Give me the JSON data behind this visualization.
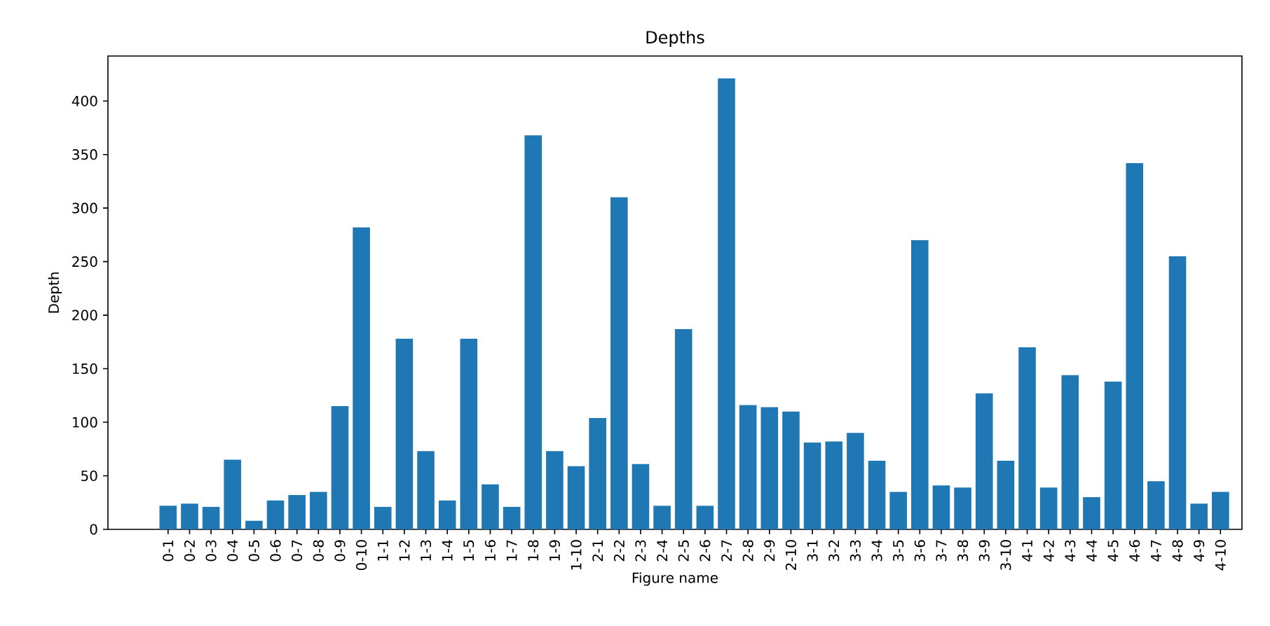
{
  "chart_data": {
    "type": "bar",
    "title": "Depths",
    "xlabel": "Figure name",
    "ylabel": "Depth",
    "categories": [
      "0-1",
      "0-2",
      "0-3",
      "0-4",
      "0-5",
      "0-6",
      "0-7",
      "0-8",
      "0-9",
      "0-10",
      "1-1",
      "1-2",
      "1-3",
      "1-4",
      "1-5",
      "1-6",
      "1-7",
      "1-8",
      "1-9",
      "1-10",
      "2-1",
      "2-2",
      "2-3",
      "2-4",
      "2-5",
      "2-6",
      "2-7",
      "2-8",
      "2-9",
      "2-10",
      "3-1",
      "3-2",
      "3-3",
      "3-4",
      "3-5",
      "3-6",
      "3-7",
      "3-8",
      "3-9",
      "3-10",
      "4-1",
      "4-2",
      "4-3",
      "4-4",
      "4-5",
      "4-6",
      "4-7",
      "4-8",
      "4-9",
      "4-10"
    ],
    "values": [
      22,
      24,
      21,
      65,
      8,
      27,
      32,
      35,
      115,
      282,
      21,
      178,
      73,
      27,
      178,
      42,
      21,
      368,
      73,
      59,
      104,
      310,
      61,
      22,
      187,
      22,
      421,
      116,
      114,
      110,
      81,
      82,
      90,
      64,
      35,
      270,
      41,
      39,
      127,
      64,
      170,
      39,
      144,
      30,
      138,
      342,
      45,
      255,
      24,
      35
    ],
    "color": "#1f77b4",
    "ylim": [
      0,
      442
    ],
    "yticks": [
      0,
      50,
      100,
      150,
      200,
      250,
      300,
      350,
      400
    ]
  }
}
